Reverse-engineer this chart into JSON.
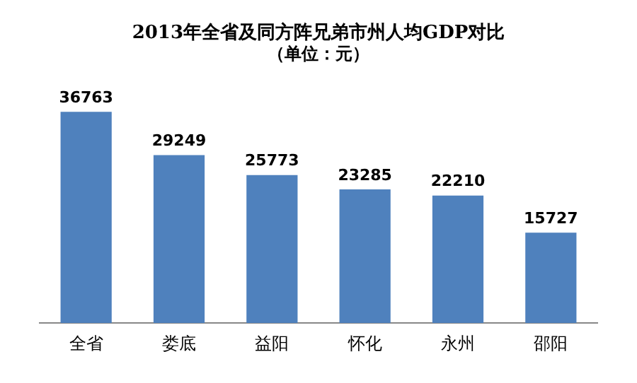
{
  "chart_data": {
    "type": "bar",
    "title": "2013年全省及同方阵兄弟市州人均GDP对比",
    "subtitle": "（单位：元）",
    "categories": [
      "全省",
      "娄底",
      "益阳",
      "怀化",
      "永州",
      "邵阳"
    ],
    "values": [
      36763,
      29249,
      25773,
      23285,
      22210,
      15727
    ],
    "color": "#4f81bd",
    "data_labels": true,
    "grid": false,
    "legend": false,
    "tick_labels": "x"
  }
}
